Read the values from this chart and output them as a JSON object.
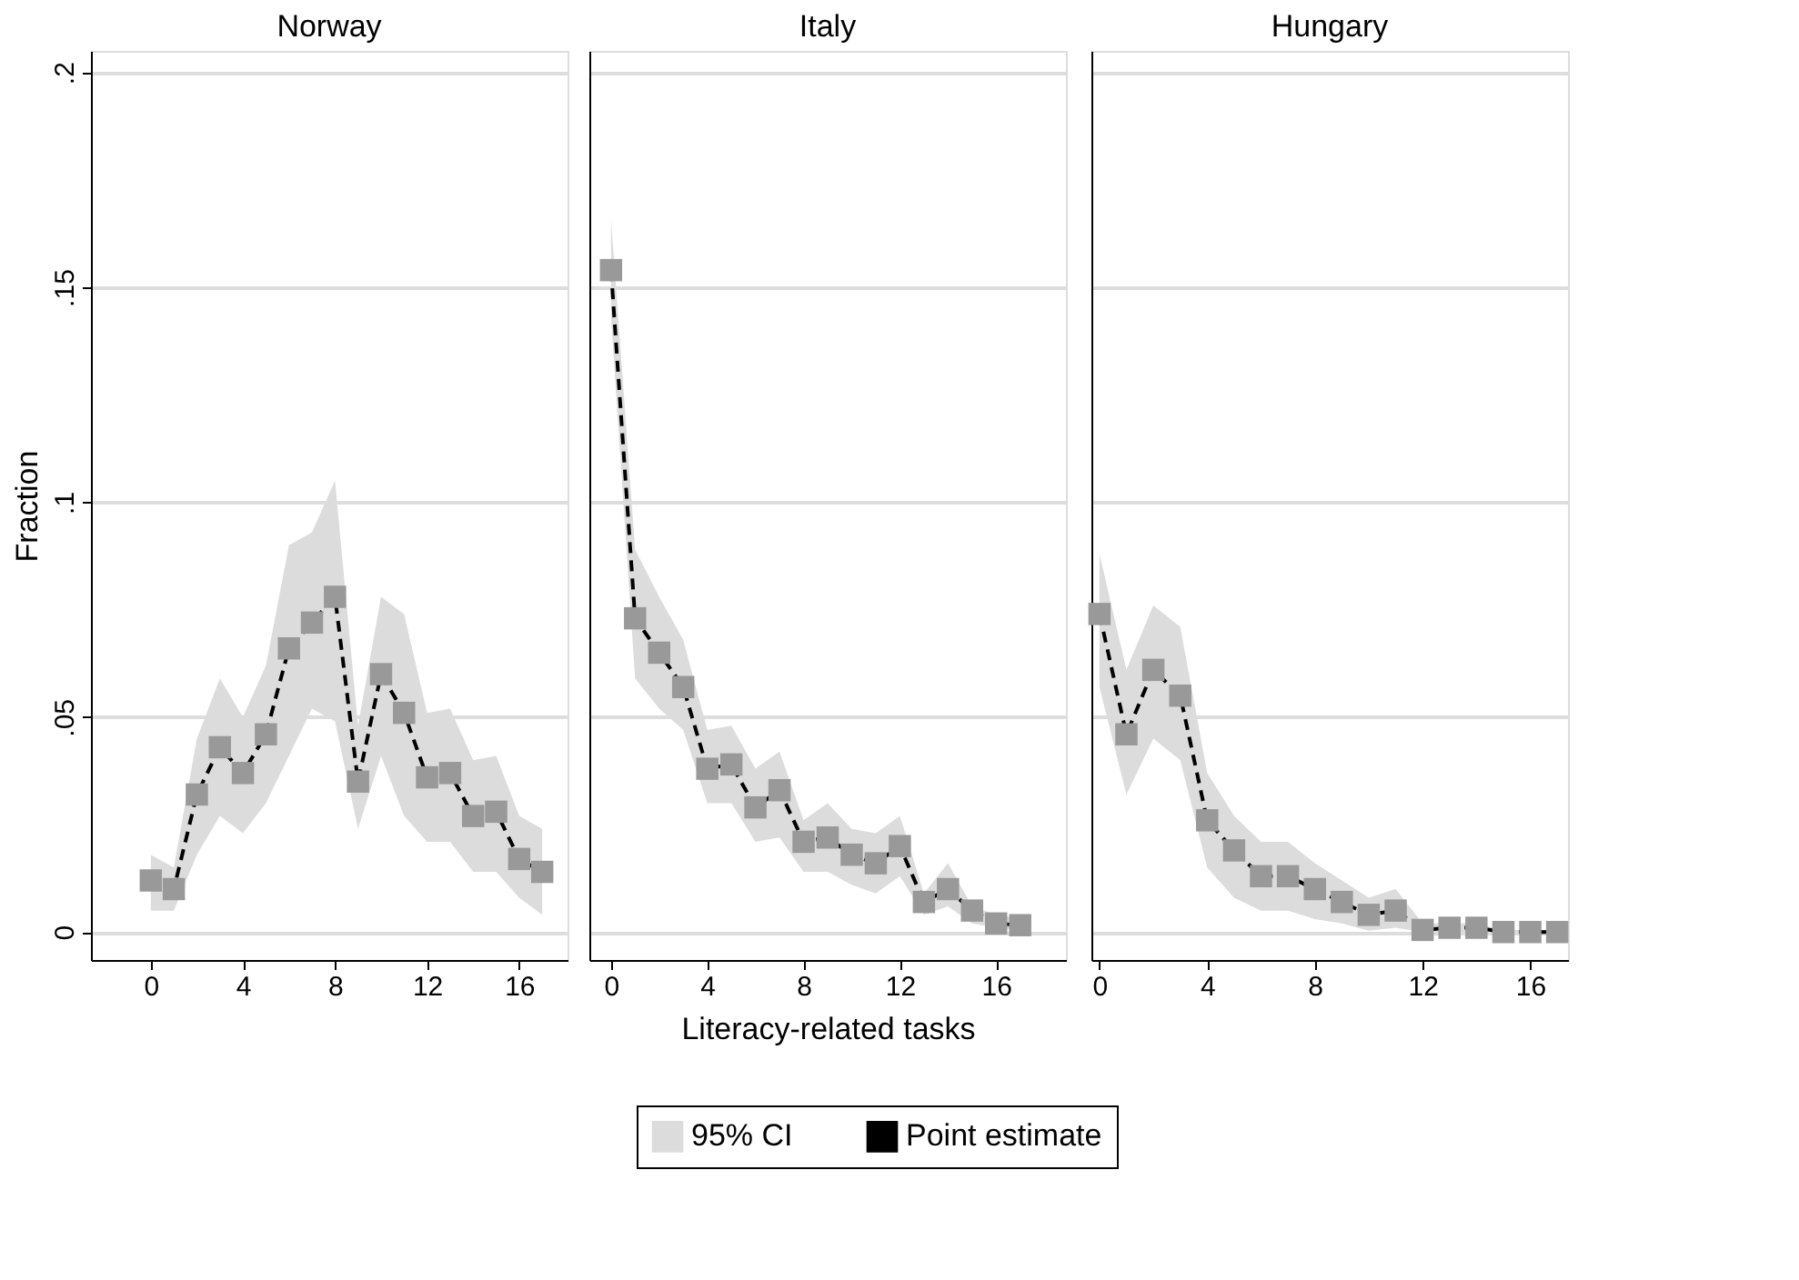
{
  "chart_data": [
    {
      "type": "line",
      "title": "Norway",
      "ylabel": "Fraction",
      "x": [
        0,
        1,
        2,
        3,
        4,
        5,
        6,
        7,
        8,
        9,
        10,
        11,
        12,
        13,
        14,
        15,
        16,
        17
      ],
      "xlim": [
        -2.6,
        18.1
      ],
      "xticks": [
        0,
        4,
        8,
        12,
        16
      ],
      "ylim": [
        -0.0065,
        0.205
      ],
      "yticks": [
        {
          "value": 0,
          "label": "0"
        },
        {
          "value": 0.05,
          "label": ".05"
        },
        {
          "value": 0.1,
          "label": ".1"
        },
        {
          "value": 0.15,
          "label": ".15"
        },
        {
          "value": 0.2,
          "label": ".2"
        }
      ],
      "grid": "y",
      "marker": "square",
      "line_style": "dashed",
      "legend": "bottom",
      "series": [
        {
          "name": "95% CI",
          "type": "area",
          "color": "#dcdcdc",
          "values": [
            null,
            null,
            null,
            null,
            null,
            null,
            null,
            null,
            null,
            null,
            null,
            null,
            null,
            null,
            null,
            null,
            null,
            null
          ],
          "lower": [
            0.005,
            0.005,
            0.018,
            0.027,
            0.023,
            0.03,
            0.041,
            0.052,
            0.049,
            0.024,
            0.041,
            0.027,
            0.021,
            0.021,
            0.014,
            0.014,
            0.008,
            0.004
          ],
          "upper": [
            0.018,
            0.015,
            0.045,
            0.059,
            0.05,
            0.062,
            0.09,
            0.093,
            0.105,
            0.048,
            0.078,
            0.074,
            0.051,
            0.052,
            0.04,
            0.041,
            0.027,
            0.024
          ]
        },
        {
          "name": "Point estimate",
          "color": "#000000",
          "values": [
            0.012,
            0.01,
            0.032,
            0.043,
            0.037,
            0.046,
            0.066,
            0.072,
            0.078,
            0.035,
            0.06,
            0.051,
            0.036,
            0.037,
            0.027,
            0.028,
            0.017,
            0.014
          ]
        }
      ]
    },
    {
      "type": "line",
      "title": "Italy",
      "xlabel": "Literacy-related tasks",
      "x": [
        0,
        1,
        2,
        3,
        4,
        5,
        6,
        7,
        8,
        9,
        10,
        11,
        12,
        13,
        14,
        15,
        16,
        17
      ],
      "xlim": [
        -0.9,
        18.9
      ],
      "xticks": [
        0,
        4,
        8,
        12,
        16
      ],
      "ylim": [
        -0.0065,
        0.205
      ],
      "yticks": [
        0,
        0.05,
        0.1,
        0.15,
        0.2
      ],
      "grid": "y",
      "marker": "square",
      "line_style": "dashed",
      "tick_labels": "x",
      "series": [
        {
          "type": "area",
          "color": "#dcdcdc",
          "values": [
            null,
            null,
            null,
            null,
            null,
            null,
            null,
            null,
            null,
            null,
            null,
            null,
            null,
            null,
            null,
            null,
            null,
            null
          ],
          "lower": [
            0.143,
            0.059,
            0.052,
            0.047,
            0.03,
            0.03,
            0.021,
            0.022,
            0.014,
            0.014,
            0.011,
            0.009,
            0.013,
            0.004,
            0.006,
            0.002,
            0.001,
            0.0005
          ],
          "upper": [
            0.166,
            0.089,
            0.078,
            0.068,
            0.047,
            0.048,
            0.038,
            0.042,
            0.026,
            0.03,
            0.024,
            0.023,
            0.027,
            0.009,
            0.016,
            0.006,
            0.004,
            0.003
          ]
        },
        {
          "color": "#000000",
          "values": [
            0.154,
            0.073,
            0.065,
            0.057,
            0.038,
            0.039,
            0.029,
            0.033,
            0.021,
            0.022,
            0.018,
            0.016,
            0.02,
            0.007,
            0.01,
            0.005,
            0.002,
            0.0016
          ]
        }
      ]
    },
    {
      "type": "line",
      "title": "Hungary",
      "x": [
        0,
        1,
        2,
        3,
        4,
        5,
        6,
        7,
        8,
        9,
        10,
        11,
        12,
        13,
        14,
        15,
        16,
        17
      ],
      "xlim": [
        -0.3,
        17.4
      ],
      "xticks": [
        0,
        4,
        8,
        12,
        16
      ],
      "ylim": [
        -0.0065,
        0.205
      ],
      "yticks": [
        0,
        0.05,
        0.1,
        0.15,
        0.2
      ],
      "grid": "y",
      "marker": "square",
      "line_style": "dashed",
      "tick_labels": "x",
      "series": [
        {
          "type": "area",
          "color": "#dcdcdc",
          "values": [
            null,
            null,
            null,
            null,
            null,
            null,
            null,
            null,
            null,
            null,
            null,
            null,
            null,
            null,
            null,
            null,
            null,
            null
          ],
          "lower": [
            0.057,
            0.032,
            0.045,
            0.04,
            0.015,
            0.008,
            0.005,
            0.005,
            0.003,
            0.002,
            0.0003,
            0.001,
            0,
            0,
            0,
            0,
            0,
            0
          ],
          "upper": [
            0.088,
            0.061,
            0.076,
            0.071,
            0.037,
            0.027,
            0.021,
            0.021,
            0.016,
            0.012,
            0.008,
            0.01,
            0.002,
            0.002,
            0.002,
            0.0005,
            0.0005,
            0.0005
          ]
        },
        {
          "color": "#000000",
          "values": [
            0.074,
            0.046,
            0.061,
            0.055,
            0.026,
            0.019,
            0.013,
            0.013,
            0.01,
            0.007,
            0.004,
            0.005,
            0.0005,
            0.001,
            0.001,
            0,
            0,
            0
          ]
        }
      ]
    }
  ]
}
